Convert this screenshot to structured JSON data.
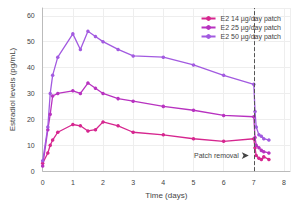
{
  "chart_data": {
    "type": "line",
    "x_label": "Time (days)",
    "y_label": "Estradiol levels (pg/mL)",
    "xlim": [
      0,
      8.2
    ],
    "xticks": [
      0,
      1,
      2,
      3,
      4,
      5,
      6,
      7,
      8
    ],
    "ylim": [
      0,
      63
    ],
    "yticks": [
      0,
      10,
      20,
      30,
      40,
      50,
      60
    ],
    "grid": true,
    "legend": "top-right",
    "marker": "circle",
    "x": [
      0,
      0.17,
      0.25,
      0.33,
      0.5,
      1.0,
      1.25,
      1.5,
      1.75,
      2,
      2.5,
      3,
      4,
      5,
      6,
      7,
      7.04,
      7.08,
      7.17,
      7.25,
      7.33,
      7.5
    ],
    "series": [
      {
        "name": "E2 14 µg/day patch",
        "color": "#d6268f",
        "values": [
          3,
          7,
          10,
          12,
          15,
          18,
          17.5,
          15.5,
          16,
          19,
          17.5,
          15,
          14,
          12.5,
          11.5,
          12.5,
          9,
          6,
          5,
          4.5,
          5.5,
          4.5
        ]
      },
      {
        "name": "E2 25 µg/day patch",
        "color": "#b832c0",
        "values": [
          2,
          16,
          22,
          29,
          30,
          31,
          30,
          34,
          32,
          30,
          28,
          27,
          25,
          23.5,
          21.5,
          21,
          13,
          10,
          9,
          8,
          7.5,
          7
        ]
      },
      {
        "name": "E2 50 µg/day patch",
        "color": "#a25ae0",
        "values": [
          4,
          17,
          30,
          37,
          44,
          53,
          47,
          54,
          52,
          50,
          47,
          44.5,
          44,
          41,
          37,
          33.5,
          23,
          17,
          14,
          13.5,
          12.5,
          12
        ]
      }
    ],
    "annotations": [
      {
        "text": "Patch removal",
        "x": 7,
        "y": 6,
        "line_style": "dashed"
      }
    ]
  }
}
